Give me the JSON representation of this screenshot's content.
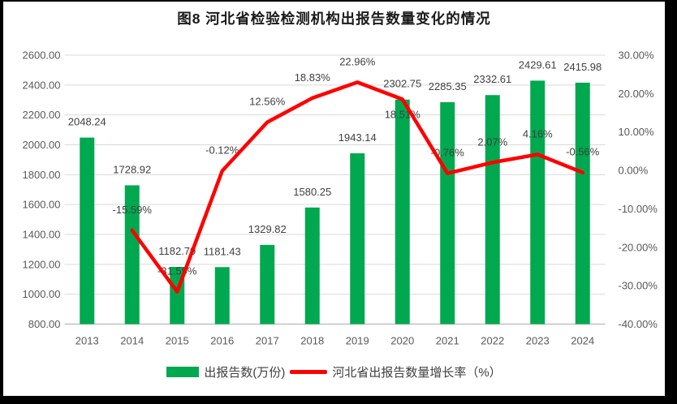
{
  "title": "图8 河北省检验检测机构出报告数量变化的情况",
  "legend": {
    "bar_series_label": "出报告数(万份)",
    "line_series_label": "河北省出报告数量增长率（%）"
  },
  "colors": {
    "bar": "#00A84F",
    "line": "#FF0000",
    "grid": "#D9D9D9",
    "axis": "#BFBFBF",
    "tick_text": "#595959",
    "label_text": "#404040",
    "title_text": "#1A1A1A",
    "border": "#000000",
    "background": "#FFFFFF"
  },
  "chart_data": {
    "type": "combo-bar-line",
    "title": "图8 河北省检验检测机构出报告数量变化的情况",
    "categories": [
      "2013",
      "2014",
      "2015",
      "2016",
      "2017",
      "2018",
      "2019",
      "2020",
      "2021",
      "2022",
      "2023",
      "2024"
    ],
    "series": [
      {
        "name": "出报告数(万份)",
        "type": "bar",
        "axis": "left",
        "color": "#00A84F",
        "values": [
          2048.24,
          1728.92,
          1182.79,
          1181.43,
          1329.82,
          1580.25,
          1943.14,
          2302.75,
          2285.35,
          2332.61,
          2429.61,
          2415.98
        ],
        "data_labels": [
          "2048.24",
          "1728.92",
          "1182.79",
          "1181.43",
          "1329.82",
          "1580.25",
          "1943.14",
          "2302.75",
          "2285.35",
          "2332.61",
          "2429.61",
          "2415.98"
        ]
      },
      {
        "name": "河北省出报告数量增长率（%）",
        "type": "line",
        "axis": "right",
        "color": "#FF0000",
        "values": [
          null,
          -15.59,
          -31.59,
          -0.12,
          12.56,
          18.83,
          22.96,
          18.51,
          -0.76,
          2.07,
          4.16,
          -0.56
        ],
        "data_labels": [
          "",
          "-15.59%",
          "-31.59%",
          "-0.12%",
          "12.56%",
          "18.83%",
          "22.96%",
          "18.51%",
          "-0.76%",
          "2.07%",
          "4.16%",
          "-0.56%"
        ],
        "label_side": [
          "",
          "above",
          "above",
          "above",
          "above",
          "above",
          "above",
          "below",
          "above",
          "above",
          "above",
          "above"
        ]
      }
    ],
    "left_axis": {
      "min": 800,
      "max": 2600,
      "step": 200,
      "ticks": [
        "2600.00",
        "2400.00",
        "2200.00",
        "2000.00",
        "1800.00",
        "1600.00",
        "1400.00",
        "1200.00",
        "1000.00",
        "800.00"
      ]
    },
    "right_axis": {
      "min": -40,
      "max": 30,
      "step": 10,
      "ticks": [
        "30.00%",
        "20.00%",
        "10.00%",
        "0.00%",
        "-10.00%",
        "-20.00%",
        "-30.00%",
        "-40.00%"
      ]
    },
    "grid": true,
    "legend_position": "bottom"
  }
}
